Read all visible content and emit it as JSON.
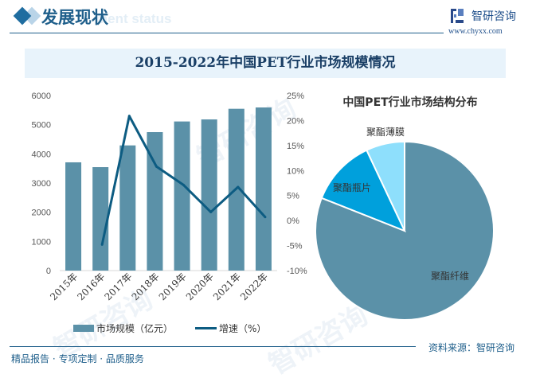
{
  "header": {
    "title": "发展现状",
    "subtitle_en": "ment status",
    "logo_text": "智研咨询",
    "logo_url": "www.chyxx.com"
  },
  "footer": {
    "left_text": "精品报告 · 专项定制 · 品质服务",
    "source": "资料来源：智研咨询",
    "watermark": "智研咨询"
  },
  "colors": {
    "bar": "#5b91a8",
    "line": "#0d5c82",
    "fiber": "#5b91a8",
    "bottle": "#00a0dc",
    "film": "#8edffc",
    "accent": "#1f5f8b"
  },
  "chart_data": [
    {
      "type": "bar",
      "title": "2015-2022年中国PET行业市场规模情况",
      "categories": [
        "2015年",
        "2016年",
        "2017年",
        "2018年",
        "2019年",
        "2020年",
        "2021年",
        "2022年"
      ],
      "series": [
        {
          "name": "市场规模（亿元）",
          "type": "bar",
          "axis": "left",
          "values": [
            3710,
            3545,
            4290,
            4745,
            5110,
            5180,
            5545,
            5590
          ]
        },
        {
          "name": "增速（%）",
          "type": "line",
          "axis": "right",
          "values": [
            null,
            -4.8,
            20.9,
            10.8,
            7.1,
            1.7,
            6.7,
            0.7
          ]
        }
      ],
      "ylim_left": [
        0,
        6000
      ],
      "yticks_left": [
        "0",
        "1000",
        "2000",
        "3000",
        "4000",
        "5000",
        "6000"
      ],
      "ylim_right": [
        -10,
        25
      ],
      "yticks_right": [
        "-10%",
        "-5%",
        "0%",
        "5%",
        "10%",
        "15%",
        "20%",
        "25%"
      ],
      "grid": false,
      "legend": "bottom"
    },
    {
      "type": "pie",
      "title": "中国PET行业市场结构分布",
      "slices": [
        {
          "label": "聚酯纤维",
          "value": 81
        },
        {
          "label": "聚酯瓶片",
          "value": 12
        },
        {
          "label": "聚酯薄膜",
          "value": 7
        }
      ]
    }
  ]
}
